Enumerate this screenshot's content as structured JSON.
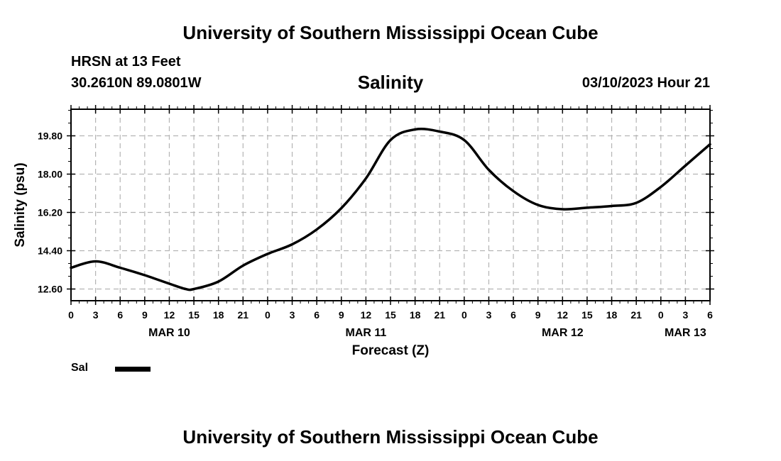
{
  "header": {
    "title": "University of Southern Mississippi Ocean Cube",
    "station": "HRSN at 13 Feet",
    "coordinates": "30.2610N  89.0801W",
    "datetime": "03/10/2023 Hour 21"
  },
  "footer": {
    "title": "University of Southern Mississippi Ocean Cube"
  },
  "legend": {
    "label": "Sal",
    "color": "#000000"
  },
  "chart_data": {
    "type": "line",
    "title": "Salinity",
    "xlabel": "Forecast (Z)",
    "ylabel": "Salinity (psu)",
    "ylim": [
      12.05,
      21.05
    ],
    "yticks": [
      12.6,
      14.4,
      16.2,
      18.0,
      19.8
    ],
    "ytick_labels": [
      "12.60",
      "14.40",
      "16.20",
      "18.00",
      "19.80"
    ],
    "xlim": [
      0,
      78
    ],
    "xtick_labels": [
      "0",
      "3",
      "6",
      "9",
      "12",
      "15",
      "18",
      "21",
      "0",
      "3",
      "6",
      "9",
      "12",
      "15",
      "18",
      "21",
      "0",
      "3",
      "6",
      "9",
      "12",
      "15",
      "18",
      "21",
      "0",
      "3",
      "6"
    ],
    "date_labels": [
      {
        "label": "MAR 10",
        "hour": 12
      },
      {
        "label": "MAR 11",
        "hour": 36
      },
      {
        "label": "MAR 12",
        "hour": 60
      },
      {
        "label": "MAR 13",
        "hour": 75
      }
    ],
    "grid": true,
    "series": [
      {
        "name": "Sal",
        "color": "#000000",
        "x": [
          0,
          3,
          6,
          9,
          12,
          14,
          15,
          18,
          21,
          24,
          27,
          30,
          33,
          36,
          39,
          42,
          45,
          48,
          51,
          54,
          57,
          60,
          63,
          66,
          69,
          72,
          75,
          78
        ],
        "y": [
          13.6,
          13.9,
          13.6,
          13.25,
          12.85,
          12.6,
          12.6,
          12.95,
          13.7,
          14.25,
          14.7,
          15.4,
          16.4,
          17.8,
          19.6,
          20.1,
          20.0,
          19.6,
          18.2,
          17.2,
          16.55,
          16.35,
          16.42,
          16.5,
          16.65,
          17.4,
          18.4,
          19.4
        ]
      }
    ]
  }
}
